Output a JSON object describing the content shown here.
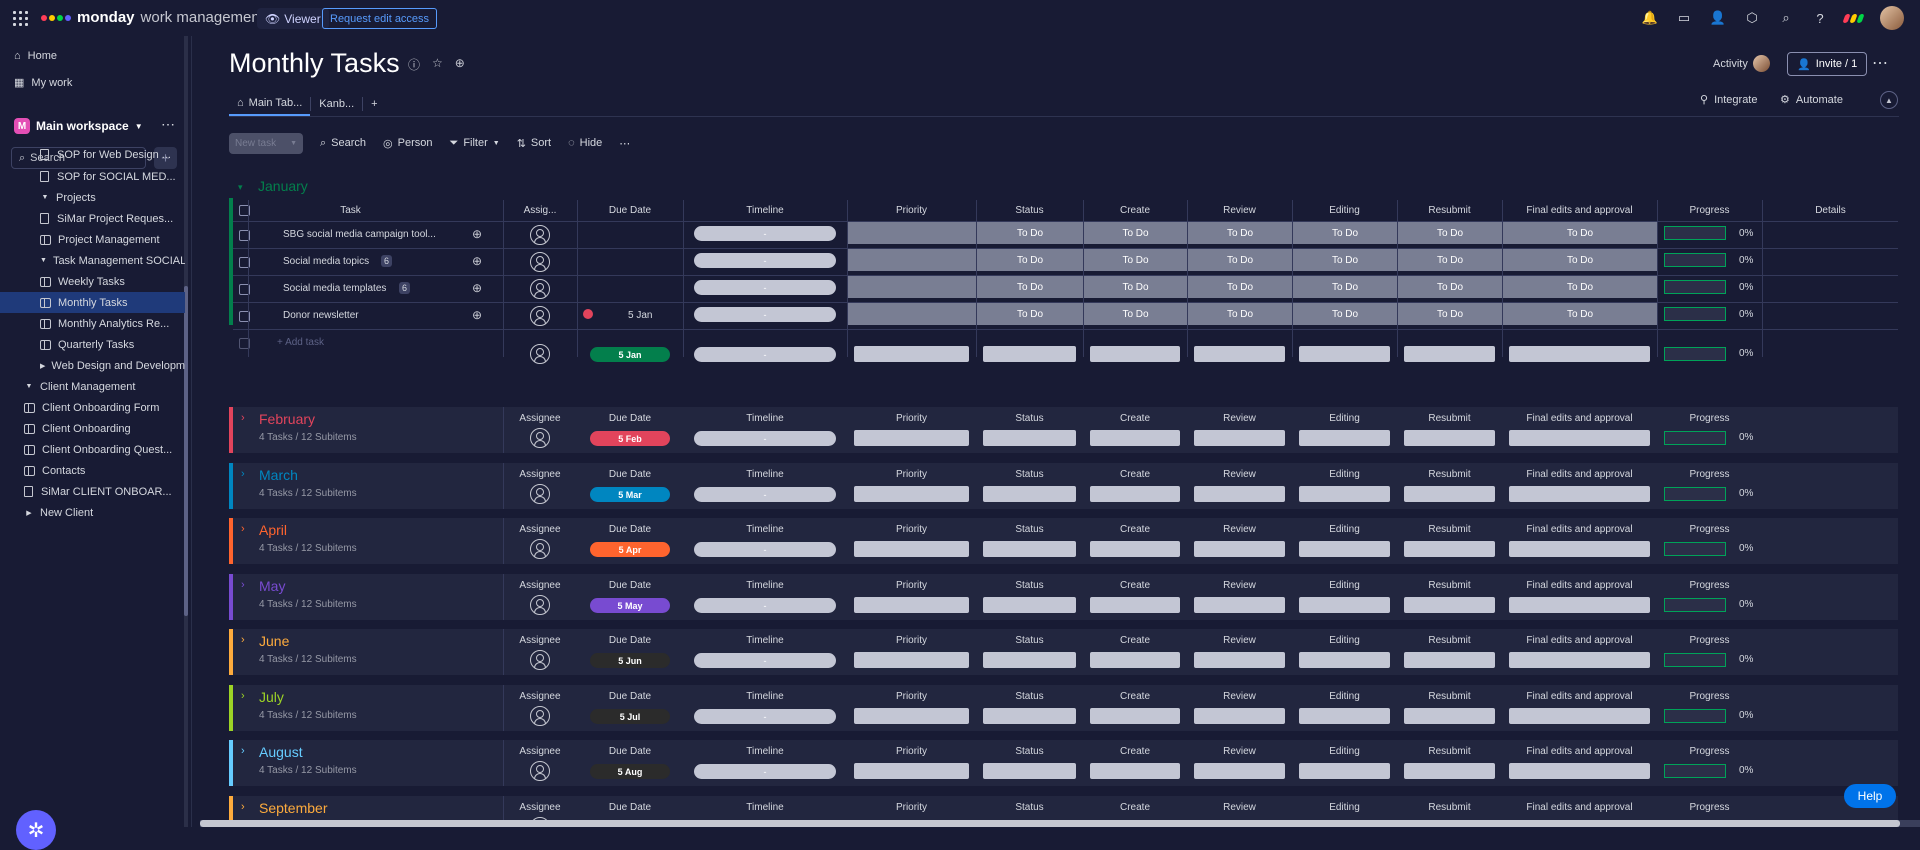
{
  "topbar": {
    "brand_bold": "monday",
    "brand_light": "work management",
    "viewer_label": "Viewer",
    "request_label": "Request edit access",
    "colors": {
      "accent": "#579bfc",
      "brand_red": "#ff3d57",
      "brand_yellow": "#ffcb00",
      "brand_green": "#00d647",
      "brand_purple": "#6161ff"
    }
  },
  "sidebar": {
    "home": "Home",
    "my_work": "My work",
    "workspace_badge": "M",
    "workspace": "Main workspace",
    "search_placeholder": "Search",
    "items": [
      {
        "label": "SOP for Web Design ...",
        "type": "doc"
      },
      {
        "label": "SOP for SOCIAL MED...",
        "type": "doc"
      },
      {
        "label": "Projects",
        "type": "folder"
      },
      {
        "label": "SiMar Project Reques...",
        "type": "doc"
      },
      {
        "label": "Project Management",
        "type": "board"
      },
      {
        "label": "Task Management SOCIAL...",
        "type": "folder"
      },
      {
        "label": "Weekly Tasks",
        "type": "board"
      },
      {
        "label": "Monthly Tasks",
        "type": "board",
        "active": true
      },
      {
        "label": "Monthly Analytics Re...",
        "type": "board"
      },
      {
        "label": "Quarterly Tasks",
        "type": "board"
      },
      {
        "label": "Web Design and Developm...",
        "type": "folder-collapsed"
      },
      {
        "label": "Client Management",
        "type": "folder"
      },
      {
        "label": "Client Onboarding Form",
        "type": "board"
      },
      {
        "label": "Client Onboarding",
        "type": "board"
      },
      {
        "label": "Client Onboarding Quest...",
        "type": "board"
      },
      {
        "label": "Contacts",
        "type": "board"
      },
      {
        "label": "SiMar CLIENT ONBOAR...",
        "type": "doc"
      },
      {
        "label": "New Client",
        "type": "folder-collapsed"
      }
    ]
  },
  "board": {
    "title": "Monthly Tasks",
    "activity_label": "Activity",
    "invite_label": "Invite / 1",
    "tabs": [
      "Main Tab...",
      "Kanb..."
    ],
    "integrate_label": "Integrate",
    "automate_label": "Automate",
    "toolbar": {
      "new_task": "New task",
      "search": "Search",
      "person": "Person",
      "filter": "Filter",
      "sort": "Sort",
      "hide": "Hide"
    },
    "columns": {
      "task": "Task",
      "assignee_short": "Assig...",
      "assignee": "Assignee",
      "due_date": "Due Date",
      "timeline": "Timeline",
      "priority": "Priority",
      "status": "Status",
      "create": "Create",
      "review": "Review",
      "editing": "Editing",
      "resubmit": "Resubmit",
      "final": "Final edits and approval",
      "progress": "Progress",
      "details": "Details"
    },
    "january": {
      "name": "January",
      "color": "#037f4c",
      "rows": [
        {
          "task": "SBG social media campaign tool...",
          "subitems": "",
          "due": "",
          "overdue": false,
          "status": "To Do",
          "create": "To Do",
          "review": "To Do",
          "editing": "To Do",
          "resubmit": "To Do",
          "final": "To Do",
          "progress": "0%",
          "timeline": "-"
        },
        {
          "task": "Social media topics",
          "subitems": "6",
          "due": "",
          "overdue": false,
          "status": "To Do",
          "create": "To Do",
          "review": "To Do",
          "editing": "To Do",
          "resubmit": "To Do",
          "final": "To Do",
          "progress": "0%",
          "timeline": "-"
        },
        {
          "task": "Social media templates",
          "subitems": "6",
          "due": "",
          "overdue": false,
          "status": "To Do",
          "create": "To Do",
          "review": "To Do",
          "editing": "To Do",
          "resubmit": "To Do",
          "final": "To Do",
          "progress": "0%",
          "timeline": "-"
        },
        {
          "task": "Donor newsletter",
          "subitems": "",
          "due": "5 Jan",
          "overdue": true,
          "status": "To Do",
          "create": "To Do",
          "review": "To Do",
          "editing": "To Do",
          "resubmit": "To Do",
          "final": "To Do",
          "progress": "0%",
          "timeline": "-"
        }
      ],
      "add_task": "+ Add task",
      "summary_due": "5 Jan",
      "summary_timeline": "-",
      "summary_progress": "0%"
    },
    "groups": [
      {
        "name": "February",
        "sub": "4 Tasks / 12 Subitems",
        "due": "5 Feb",
        "color": "#e2445c",
        "badge": "#e2445c",
        "timeline": "-",
        "progress": "0%"
      },
      {
        "name": "March",
        "sub": "4 Tasks / 12 Subitems",
        "due": "5 Mar",
        "color": "#0086c0",
        "badge": "#0086c0",
        "timeline": "-",
        "progress": "0%"
      },
      {
        "name": "April",
        "sub": "4 Tasks / 12 Subitems",
        "due": "5 Apr",
        "color": "#ff642e",
        "badge": "#ff642e",
        "timeline": "-",
        "progress": "0%"
      },
      {
        "name": "May",
        "sub": "4 Tasks / 12 Subitems",
        "due": "5 May",
        "color": "#784bd1",
        "badge": "#784bd1",
        "timeline": "-",
        "progress": "0%"
      },
      {
        "name": "June",
        "sub": "4 Tasks / 12 Subitems",
        "due": "5 Jun",
        "color": "#fdab3d",
        "badge": "#2b2b2b",
        "timeline": "-",
        "progress": "0%"
      },
      {
        "name": "July",
        "sub": "4 Tasks / 12 Subitems",
        "due": "5 Jul",
        "color": "#9cd326",
        "badge": "#2b2b2b",
        "timeline": "-",
        "progress": "0%"
      },
      {
        "name": "August",
        "sub": "4 Tasks / 12 Subitems",
        "due": "5 Aug",
        "color": "#66ccff",
        "badge": "#2b2b2b",
        "timeline": "-",
        "progress": "0%"
      },
      {
        "name": "September",
        "sub": "",
        "due": "",
        "color": "#fdab3d",
        "badge": "#2b2b2b",
        "timeline": "",
        "progress": ""
      }
    ],
    "help_label": "Help"
  }
}
